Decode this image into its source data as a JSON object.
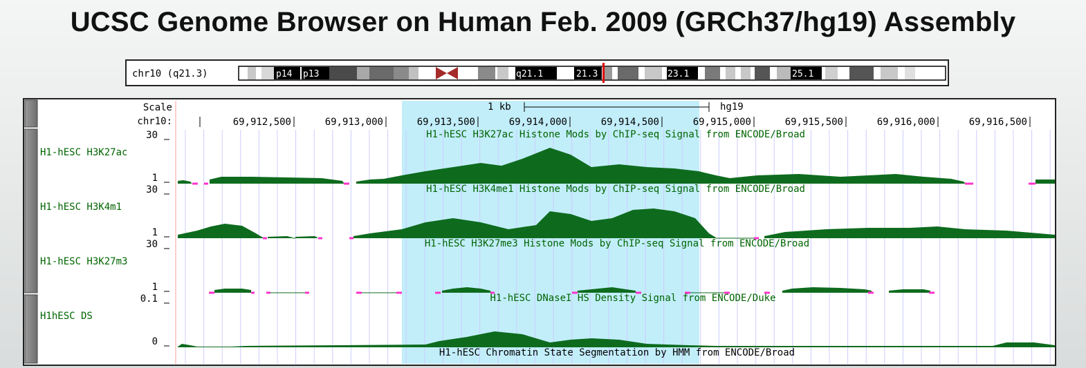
{
  "page": {
    "title": "UCSC Genome Browser on Human Feb. 2009 (GRCh37/hg19) Assembly"
  },
  "ideogram": {
    "label": "chr10 (q21.3)",
    "bands": [
      "p14",
      "p13",
      "q21.1",
      "21.3",
      "23.1",
      "25.1"
    ],
    "colors": {
      "centromere": "#b22222",
      "highlight": "#e00000"
    }
  },
  "browser": {
    "scale_label": "Scale",
    "scale_value": "1 kb",
    "assembly": "hg19",
    "chrom_label": "chr10:",
    "coordinates": [
      "69,912,500",
      "69,913,000",
      "69,913,500",
      "69,914,000",
      "69,914,500",
      "69,915,000",
      "69,915,500",
      "69,916,000",
      "69,916,500"
    ],
    "colors": {
      "signal": "#0e6b1e",
      "gap": "#ff33cc",
      "highlight": "#c2eefa",
      "label": "#006400"
    },
    "tracks": [
      {
        "short_label": "H1-hESC H3K27ac",
        "max": "30",
        "min": "1",
        "title": "H1-hESC H3K27ac Histone Mods by ChIP-seq Signal from ENCODE/Broad"
      },
      {
        "short_label": "H1-hESC H3K4m1",
        "max": "30",
        "min": "1",
        "title": "H1-hESC H3K4me1 Histone Mods by ChIP-seq Signal from ENCODE/Broad"
      },
      {
        "short_label": "H1-hESC H3K27m3",
        "max": "30",
        "min": "1",
        "title": "H1-hESC H3K27me3 Histone Mods by ChIP-seq Signal from ENCODE/Broad"
      },
      {
        "short_label": "H1hESC DS",
        "max": "0.1",
        "min": "0",
        "title": "H1-hESC DNaseI HS Density Signal from ENCODE/Duke"
      }
    ],
    "bottom_title": "H1-hESC Chromatin State Segmentation by HMM from ENCODE/Broad"
  }
}
